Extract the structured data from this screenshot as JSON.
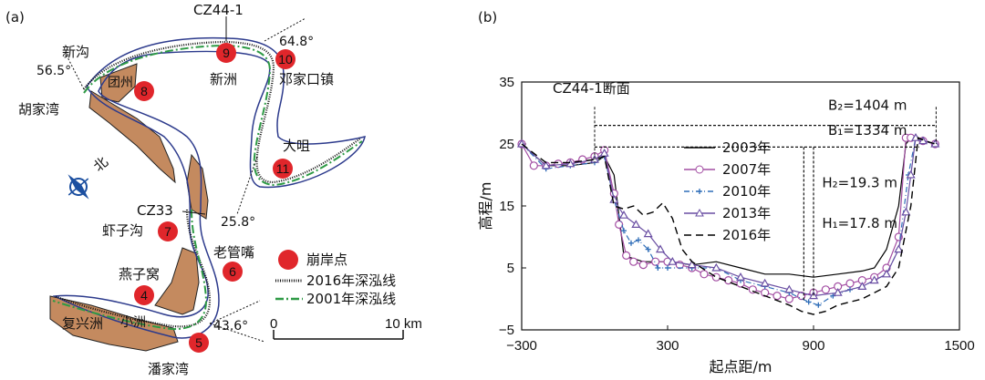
{
  "panel_a": {
    "label": "(a)",
    "places": {
      "xingou": "新沟",
      "hujiawan": "胡家湾",
      "tuanzhou": "团州",
      "xinzhou": "新洲",
      "dengjiakou": "邓家口镇",
      "dazui": "大咀",
      "xiazigou": "虾子沟",
      "laoguanzui": "老管嘴",
      "yanziwo": "燕子窝",
      "fuxingzhou": "复兴洲",
      "xiaozhou": "小洲",
      "panjiawan": "潘家湾"
    },
    "sections": {
      "cz44": "CZ44-1",
      "cz33": "CZ33"
    },
    "angles": {
      "a1": "56.5°",
      "a2": "64.8°",
      "a3": "25.8°",
      "a4": "43.6°"
    },
    "points": [
      "4",
      "5",
      "6",
      "7",
      "8",
      "9",
      "10",
      "11"
    ],
    "compass": "北",
    "legend": {
      "collapse": "崩岸点",
      "line2016": "2016年深泓线",
      "line2001": "2001年深泓线"
    },
    "scale": {
      "start": "0",
      "end": "10 km"
    },
    "colors": {
      "point": "#e0262b",
      "bank": "#c48a5f",
      "line2001": "#2e9a45",
      "outline": "#2c3a8c"
    }
  },
  "panel_b": {
    "label": "(b)",
    "annotations": {
      "section": "CZ44-1断面",
      "b2": "B₂=1404 m",
      "b1": "B₁=1334 m",
      "h2": "H₂=19.3 m",
      "h1": "H₁=17.8 m"
    },
    "chart_data": {
      "type": "line",
      "xlabel": "起点距/m",
      "ylabel": "高程/m",
      "xlim": [
        -300,
        1500
      ],
      "ylim": [
        -5,
        35
      ],
      "xticks": [
        "−300",
        "300",
        "900",
        "1500"
      ],
      "yticks": [
        "−5",
        "5",
        "15",
        "25",
        "35"
      ],
      "legend_position": "center",
      "series": [
        {
          "name": "2003年",
          "color": "#000000",
          "x": [
            -300,
            -200,
            -100,
            0,
            40,
            80,
            120,
            200,
            300,
            400,
            500,
            600,
            700,
            800,
            900,
            1000,
            1100,
            1150,
            1200,
            1250,
            1280,
            1300,
            1350,
            1400
          ],
          "y": [
            25,
            21.5,
            21.5,
            22,
            23,
            20,
            7,
            6,
            6,
            5.5,
            6,
            5,
            4,
            4,
            3.5,
            4,
            4.5,
            5,
            8,
            15,
            25,
            26,
            25.5,
            25
          ]
        },
        {
          "name": "2007年",
          "color": "#a34ea3",
          "x": [
            -300,
            -250,
            -200,
            -150,
            -100,
            -50,
            0,
            40,
            80,
            100,
            130,
            160,
            200,
            250,
            300,
            350,
            400,
            450,
            500,
            550,
            600,
            650,
            700,
            750,
            800,
            850,
            900,
            950,
            1000,
            1050,
            1100,
            1150,
            1200,
            1250,
            1280,
            1300,
            1350,
            1400
          ],
          "y": [
            25,
            21.5,
            21.5,
            21.8,
            22,
            22.5,
            23,
            24,
            17,
            12,
            7,
            6,
            5.5,
            6,
            6,
            5.5,
            5,
            4,
            3.5,
            3,
            2.5,
            1.5,
            1,
            0.5,
            0,
            0.5,
            1,
            1.5,
            2,
            2.5,
            3,
            3.5,
            5,
            10,
            26,
            26,
            25.5,
            25
          ]
        },
        {
          "name": "2010年",
          "color": "#2f6db8",
          "x": [
            -300,
            -200,
            -100,
            0,
            40,
            80,
            120,
            150,
            180,
            220,
            260,
            300,
            400,
            500,
            600,
            700,
            800,
            880,
            920,
            980,
            1050,
            1100,
            1150,
            1200,
            1250,
            1290,
            1320,
            1400
          ],
          "y": [
            25,
            21,
            21.5,
            22,
            23,
            16,
            11,
            9,
            9.5,
            8,
            5,
            5,
            5,
            5,
            3,
            2,
            1,
            -0.5,
            -1,
            0.5,
            1.5,
            2,
            3,
            4,
            8,
            20,
            26,
            25
          ]
        },
        {
          "name": "2013年",
          "color": "#6a4fa3",
          "x": [
            -300,
            -200,
            -100,
            0,
            40,
            80,
            120,
            170,
            220,
            270,
            320,
            400,
            500,
            600,
            700,
            800,
            900,
            1000,
            1100,
            1150,
            1200,
            1250,
            1280,
            1300,
            1320,
            1350,
            1400
          ],
          "y": [
            25,
            21.5,
            21.8,
            22.5,
            23.5,
            16,
            13.5,
            12,
            10.5,
            8,
            6,
            5.5,
            5,
            3.5,
            2.5,
            1.5,
            0.5,
            1,
            2,
            3,
            4,
            8,
            14,
            20,
            26,
            25.5,
            25
          ]
        },
        {
          "name": "2016年",
          "color": "#000000",
          "x": [
            -300,
            -200,
            -100,
            0,
            40,
            80,
            120,
            160,
            200,
            240,
            280,
            320,
            360,
            400,
            500,
            600,
            700,
            800,
            850,
            900,
            950,
            1000,
            1100,
            1150,
            1200,
            1250,
            1300,
            1330,
            1360,
            1400
          ],
          "y": [
            25,
            22,
            22,
            22.5,
            23,
            15,
            14.5,
            15,
            13.5,
            14,
            15.5,
            13,
            8,
            6,
            3.5,
            2,
            0.5,
            -1,
            -2,
            -2.5,
            -2,
            -1,
            0,
            1,
            2,
            5,
            15,
            26,
            25.5,
            25
          ]
        }
      ]
    }
  }
}
